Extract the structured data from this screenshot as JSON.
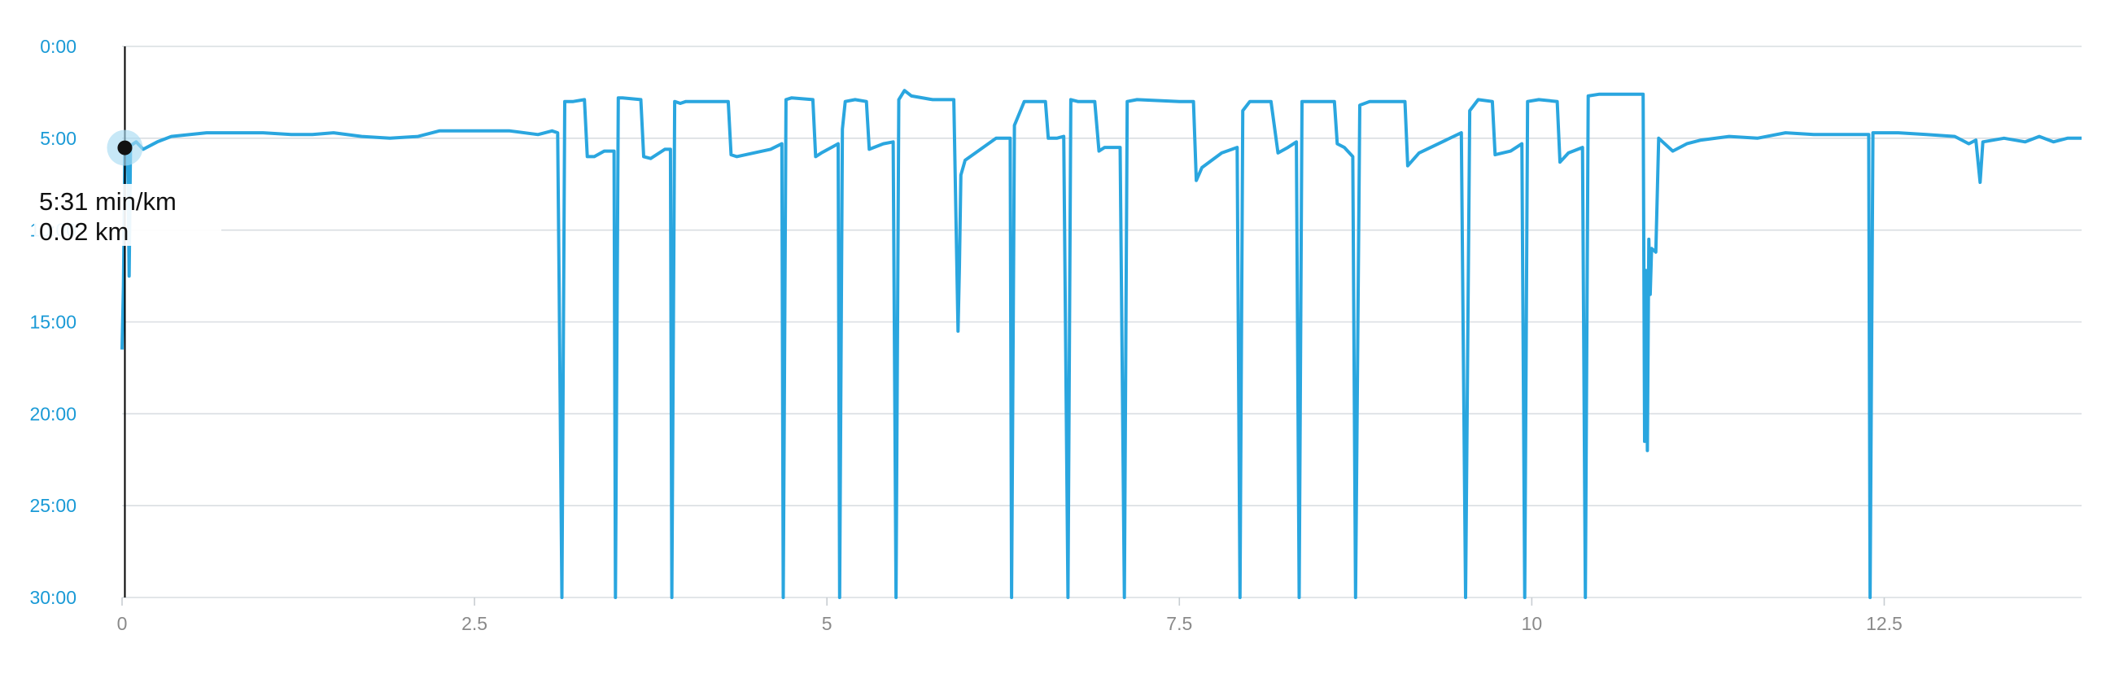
{
  "chart_data": {
    "type": "line",
    "xlim": [
      0,
      13.9
    ],
    "ylim": [
      0,
      30
    ],
    "y_inverted": true,
    "grid": true,
    "colors": {
      "series": "#2aa6df",
      "y_tick_text": "#1a9ad6",
      "x_tick_text": "#8a8a8a",
      "grid": "#d9dde1"
    },
    "x_ticks": [
      {
        "value": 0,
        "label": "0"
      },
      {
        "value": 2.5,
        "label": "2.5"
      },
      {
        "value": 5,
        "label": "5"
      },
      {
        "value": 7.5,
        "label": "7.5"
      },
      {
        "value": 10,
        "label": "10"
      },
      {
        "value": 12.5,
        "label": "12.5"
      }
    ],
    "y_ticks": [
      {
        "value": 0,
        "label": "0:00"
      },
      {
        "value": 5,
        "label": "5:00"
      },
      {
        "value": 10,
        "label": "10:00"
      },
      {
        "value": 15,
        "label": "15:00"
      },
      {
        "value": 20,
        "label": "20:00"
      },
      {
        "value": 25,
        "label": "25:00"
      },
      {
        "value": 30,
        "label": "30:00"
      }
    ],
    "series": [
      {
        "points": [
          [
            0,
            16.5
          ],
          [
            0.01,
            13
          ],
          [
            0.02,
            5.5
          ],
          [
            0.03,
            5.8
          ],
          [
            0.04,
            5.3
          ],
          [
            0.05,
            12.5
          ],
          [
            0.06,
            5.4
          ],
          [
            0.1,
            5.2
          ],
          [
            0.15,
            5.6
          ],
          [
            0.25,
            5.2
          ],
          [
            0.35,
            4.9
          ],
          [
            0.6,
            4.7
          ],
          [
            1.0,
            4.7
          ],
          [
            1.2,
            4.8
          ],
          [
            1.35,
            4.8
          ],
          [
            1.5,
            4.7
          ],
          [
            1.7,
            4.9
          ],
          [
            1.9,
            5.0
          ],
          [
            2.1,
            4.9
          ],
          [
            2.25,
            4.6
          ],
          [
            2.5,
            4.6
          ],
          [
            2.75,
            4.6
          ],
          [
            2.95,
            4.8
          ],
          [
            3.05,
            4.6
          ],
          [
            3.09,
            4.7
          ],
          [
            3.1,
            12.5
          ],
          [
            3.12,
            30
          ],
          [
            3.14,
            3.0
          ],
          [
            3.2,
            3.0
          ],
          [
            3.28,
            2.9
          ],
          [
            3.3,
            6.0
          ],
          [
            3.35,
            6.0
          ],
          [
            3.42,
            5.7
          ],
          [
            3.49,
            5.7
          ],
          [
            3.5,
            30
          ],
          [
            3.52,
            2.8
          ],
          [
            3.55,
            2.8
          ],
          [
            3.68,
            2.9
          ],
          [
            3.7,
            6.0
          ],
          [
            3.75,
            6.1
          ],
          [
            3.85,
            5.6
          ],
          [
            3.89,
            5.6
          ],
          [
            3.9,
            30
          ],
          [
            3.92,
            3.0
          ],
          [
            3.96,
            3.1
          ],
          [
            4.0,
            3.0
          ],
          [
            4.3,
            3.0
          ],
          [
            4.32,
            5.9
          ],
          [
            4.36,
            6.0
          ],
          [
            4.6,
            5.6
          ],
          [
            4.68,
            5.3
          ],
          [
            4.69,
            30
          ],
          [
            4.71,
            2.9
          ],
          [
            4.75,
            2.8
          ],
          [
            4.9,
            2.9
          ],
          [
            4.92,
            6.0
          ],
          [
            4.96,
            5.8
          ],
          [
            5.08,
            5.3
          ],
          [
            5.09,
            30
          ],
          [
            5.11,
            4.5
          ],
          [
            5.13,
            3.0
          ],
          [
            5.2,
            2.9
          ],
          [
            5.28,
            3.0
          ],
          [
            5.3,
            5.6
          ],
          [
            5.4,
            5.3
          ],
          [
            5.47,
            5.2
          ],
          [
            5.49,
            30
          ],
          [
            5.51,
            2.9
          ],
          [
            5.55,
            2.4
          ],
          [
            5.6,
            2.7
          ],
          [
            5.75,
            2.9
          ],
          [
            5.9,
            2.9
          ],
          [
            5.93,
            15.5
          ],
          [
            5.94,
            12.0
          ],
          [
            5.95,
            7.0
          ],
          [
            5.98,
            6.2
          ],
          [
            6.2,
            5.0
          ],
          [
            6.3,
            5.0
          ],
          [
            6.31,
            30
          ],
          [
            6.33,
            4.3
          ],
          [
            6.4,
            3.0
          ],
          [
            6.55,
            3.0
          ],
          [
            6.57,
            5.0
          ],
          [
            6.63,
            5.0
          ],
          [
            6.68,
            4.9
          ],
          [
            6.71,
            30
          ],
          [
            6.73,
            2.9
          ],
          [
            6.78,
            3.0
          ],
          [
            6.9,
            3.0
          ],
          [
            6.93,
            5.7
          ],
          [
            6.97,
            5.5
          ],
          [
            7.08,
            5.5
          ],
          [
            7.11,
            30
          ],
          [
            7.13,
            3.0
          ],
          [
            7.2,
            2.9
          ],
          [
            7.5,
            3.0
          ],
          [
            7.6,
            3.0
          ],
          [
            7.62,
            7.3
          ],
          [
            7.66,
            6.6
          ],
          [
            7.8,
            5.8
          ],
          [
            7.91,
            5.5
          ],
          [
            7.93,
            30
          ],
          [
            7.95,
            3.5
          ],
          [
            8.0,
            3.0
          ],
          [
            8.15,
            3.0
          ],
          [
            8.2,
            5.8
          ],
          [
            8.27,
            5.5
          ],
          [
            8.33,
            5.2
          ],
          [
            8.35,
            30
          ],
          [
            8.37,
            3.0
          ],
          [
            8.45,
            3.0
          ],
          [
            8.6,
            3.0
          ],
          [
            8.62,
            5.3
          ],
          [
            8.67,
            5.5
          ],
          [
            8.73,
            6.0
          ],
          [
            8.75,
            30
          ],
          [
            8.78,
            3.2
          ],
          [
            8.85,
            3.0
          ],
          [
            9.1,
            3.0
          ],
          [
            9.12,
            6.5
          ],
          [
            9.2,
            5.8
          ],
          [
            9.5,
            4.7
          ],
          [
            9.53,
            30
          ],
          [
            9.56,
            3.5
          ],
          [
            9.62,
            2.9
          ],
          [
            9.72,
            3.0
          ],
          [
            9.74,
            5.9
          ],
          [
            9.85,
            5.7
          ],
          [
            9.93,
            5.3
          ],
          [
            9.95,
            30
          ],
          [
            9.97,
            3.0
          ],
          [
            10.05,
            2.9
          ],
          [
            10.18,
            3.0
          ],
          [
            10.2,
            6.3
          ],
          [
            10.26,
            5.8
          ],
          [
            10.36,
            5.5
          ],
          [
            10.38,
            30
          ],
          [
            10.4,
            2.7
          ],
          [
            10.48,
            2.6
          ],
          [
            10.7,
            2.6
          ],
          [
            10.79,
            2.6
          ],
          [
            10.8,
            21.5
          ],
          [
            10.81,
            12.2
          ],
          [
            10.82,
            22.0
          ],
          [
            10.83,
            10.5
          ],
          [
            10.84,
            13.5
          ],
          [
            10.85,
            11.0
          ],
          [
            10.88,
            11.2
          ],
          [
            10.9,
            5.0
          ],
          [
            11.0,
            5.7
          ],
          [
            11.1,
            5.3
          ],
          [
            11.2,
            5.1
          ],
          [
            11.4,
            4.9
          ],
          [
            11.6,
            5.0
          ],
          [
            11.8,
            4.7
          ],
          [
            12.0,
            4.8
          ],
          [
            12.3,
            4.8
          ],
          [
            12.39,
            4.8
          ],
          [
            12.4,
            30
          ],
          [
            12.42,
            4.7
          ],
          [
            12.6,
            4.7
          ],
          [
            12.8,
            4.8
          ],
          [
            13.0,
            4.9
          ],
          [
            13.1,
            5.3
          ],
          [
            13.15,
            5.1
          ],
          [
            13.18,
            7.4
          ],
          [
            13.2,
            5.2
          ],
          [
            13.35,
            5.0
          ],
          [
            13.5,
            5.2
          ],
          [
            13.6,
            4.9
          ],
          [
            13.7,
            5.2
          ],
          [
            13.8,
            5.0
          ],
          [
            13.9,
            5.0
          ]
        ]
      }
    ],
    "cursor": {
      "x": 0.02,
      "y": 5.52
    }
  },
  "tooltip": {
    "pace": "5:31 min/km",
    "distance": "0.02 km"
  }
}
